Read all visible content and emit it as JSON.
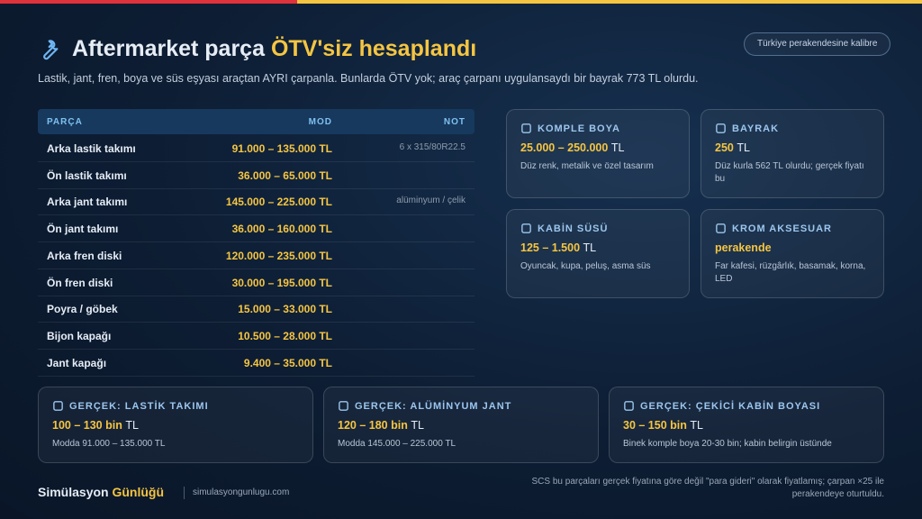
{
  "header": {
    "title": "Aftermarket parça",
    "title_highlight": "ÖTV'siz hesaplandı",
    "badge": "Türkiye perakendesine kalibre",
    "subtitle": "Lastik, jant, fren, boya ve süs eşyası araçtan AYRI çarpanla. Bunlarda ÖTV yok; araç çarpanı uygulansaydı bir bayrak 773 TL olurdu."
  },
  "table": {
    "columns": [
      "PARÇA",
      "MOD",
      "NOT"
    ],
    "rows": [
      {
        "part": "Arka lastik takımı",
        "mod": "91.000 – 135.000 TL",
        "note": "6 x 315/80R22.5"
      },
      {
        "part": "Ön lastik takımı",
        "mod": "36.000 – 65.000 TL"
      },
      {
        "part": "Arka jant takımı",
        "mod": "145.000 – 225.000 TL",
        "note": "alüminyum / çelik"
      },
      {
        "part": "Ön jant takımı",
        "mod": "36.000 – 160.000 TL"
      },
      {
        "part": "Arka fren diski",
        "mod": "120.000 – 235.000 TL"
      },
      {
        "part": "Ön fren diski",
        "mod": "30.000 – 195.000 TL"
      },
      {
        "part": "Poyra / göbek",
        "mod": "15.000 – 33.000 TL"
      },
      {
        "part": "Bijon kapağı",
        "mod": "10.500 – 28.000 TL"
      },
      {
        "part": "Jant kapağı",
        "mod": "9.400 – 35.000 TL"
      }
    ]
  },
  "cards": [
    {
      "title": "KOMPLE BOYA",
      "value": "25.000 – 250.000",
      "unit": "TL",
      "desc": "Düz renk, metalik ve özel tasarım"
    },
    {
      "title": "BAYRAK",
      "value": "250",
      "unit": "TL",
      "desc": "Düz kurla 562 TL olurdu; gerçek fiyatı bu"
    },
    {
      "title": "KABİN SÜSÜ",
      "value": "125 – 1.500",
      "unit": "TL",
      "desc": "Oyuncak, kupa, peluş, asma süs"
    },
    {
      "title": "KROM AKSESUAR",
      "value": "perakende",
      "desc": "Far kafesi, rüzgârlık, basamak, korna, LED"
    }
  ],
  "real_cards": [
    {
      "title": "GERÇEK: LASTİK TAKIMI",
      "value": "100 – 130 bin",
      "unit": "TL",
      "desc": "Modda 91.000 – 135.000 TL"
    },
    {
      "title": "GERÇEK: ALÜMİNYUM JANT",
      "value": "120 – 180 bin",
      "unit": "TL",
      "desc": "Modda 145.000 – 225.000 TL"
    },
    {
      "title": "GERÇEK: ÇEKİCİ KABİN BOYASI",
      "value": "30 – 150 bin",
      "unit": "TL",
      "desc": "Binek komple boya 20-30 bin; kabin belirgin üstünde"
    }
  ],
  "footer": {
    "brand": "Simülasyon",
    "brand_highlight": "Günlüğü",
    "url": "simulasyongunlugu.com",
    "note": "SCS bu parçaları gerçek fiyatına göre değil \"para gideri\" olarak fiyatlamış; çarpan ×25 ile perakendeye oturtuldu."
  }
}
